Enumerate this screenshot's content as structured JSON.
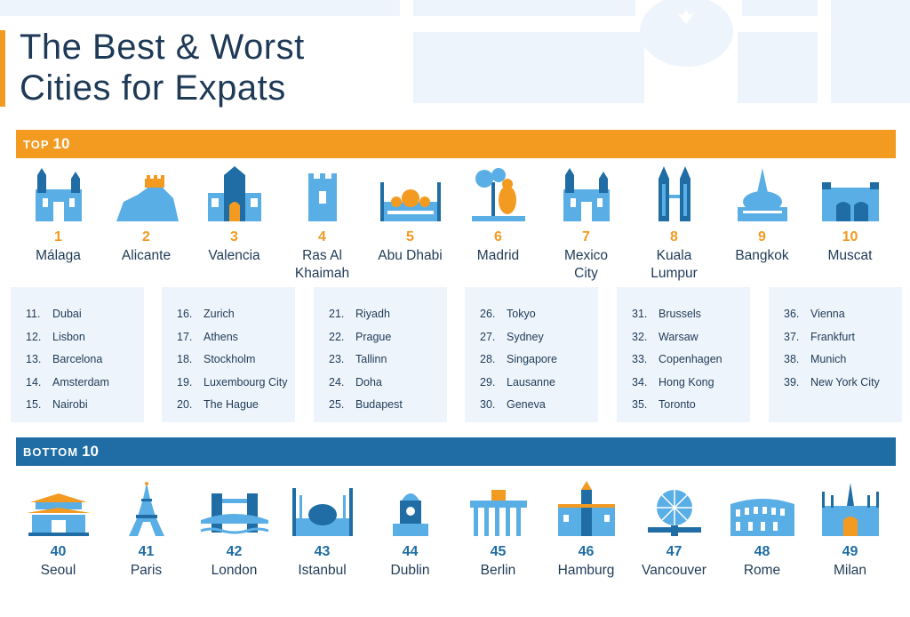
{
  "title_line1": "The Best & Worst",
  "title_line2": "Cities for Expats",
  "top_band": {
    "small": "TOP",
    "big": "10"
  },
  "bottom_band": {
    "small": "BOTTOM",
    "big": "10"
  },
  "top10": [
    {
      "rank": "1",
      "name": "Málaga",
      "icon": "cathedral-icon"
    },
    {
      "rank": "2",
      "name": "Alicante",
      "icon": "castle-hill-icon"
    },
    {
      "rank": "3",
      "name": "Valencia",
      "icon": "gothic-gate-icon"
    },
    {
      "rank": "4",
      "name": "Ras Al Khaimah",
      "icon": "fort-tower-icon"
    },
    {
      "rank": "5",
      "name": "Abu Dhabi",
      "icon": "grand-mosque-icon"
    },
    {
      "rank": "6",
      "name": "Madrid",
      "icon": "bear-statue-icon"
    },
    {
      "rank": "7",
      "name": "Mexico City",
      "icon": "cathedral-icon"
    },
    {
      "rank": "8",
      "name": "Kuala Lumpur",
      "icon": "twin-towers-icon"
    },
    {
      "rank": "9",
      "name": "Bangkok",
      "icon": "temple-icon"
    },
    {
      "rank": "10",
      "name": "Muscat",
      "icon": "palace-icon"
    }
  ],
  "middle_lists": [
    [
      {
        "n": "11.",
        "name": "Dubai"
      },
      {
        "n": "12.",
        "name": "Lisbon"
      },
      {
        "n": "13.",
        "name": "Barcelona"
      },
      {
        "n": "14.",
        "name": "Amsterdam"
      },
      {
        "n": "15.",
        "name": "Nairobi"
      }
    ],
    [
      {
        "n": "16.",
        "name": "Zurich"
      },
      {
        "n": "17.",
        "name": "Athens"
      },
      {
        "n": "18.",
        "name": "Stockholm"
      },
      {
        "n": "19.",
        "name": "Luxembourg City"
      },
      {
        "n": "20.",
        "name": "The Hague"
      }
    ],
    [
      {
        "n": "21.",
        "name": "Riyadh"
      },
      {
        "n": "22.",
        "name": "Prague"
      },
      {
        "n": "23.",
        "name": "Tallinn"
      },
      {
        "n": "24.",
        "name": "Doha"
      },
      {
        "n": "25.",
        "name": "Budapest"
      }
    ],
    [
      {
        "n": "26.",
        "name": "Tokyo"
      },
      {
        "n": "27.",
        "name": "Sydney"
      },
      {
        "n": "28.",
        "name": "Singapore"
      },
      {
        "n": "29.",
        "name": "Lausanne"
      },
      {
        "n": "30.",
        "name": "Geneva"
      }
    ],
    [
      {
        "n": "31.",
        "name": "Brussels"
      },
      {
        "n": "32.",
        "name": "Warsaw"
      },
      {
        "n": "33.",
        "name": "Copenhagen"
      },
      {
        "n": "34.",
        "name": "Hong Kong"
      },
      {
        "n": "35.",
        "name": "Toronto"
      }
    ],
    [
      {
        "n": "36.",
        "name": "Vienna"
      },
      {
        "n": "37.",
        "name": "Frankfurt"
      },
      {
        "n": "38.",
        "name": "Munich"
      },
      {
        "n": "39.",
        "name": "New York City"
      }
    ]
  ],
  "bottom10": [
    {
      "rank": "40",
      "name": "Seoul",
      "icon": "pagoda-gate-icon"
    },
    {
      "rank": "41",
      "name": "Paris",
      "icon": "eiffel-tower-icon"
    },
    {
      "rank": "42",
      "name": "London",
      "icon": "tower-bridge-icon"
    },
    {
      "rank": "43",
      "name": "Istanbul",
      "icon": "blue-mosque-icon"
    },
    {
      "rank": "44",
      "name": "Dublin",
      "icon": "clock-tower-icon"
    },
    {
      "rank": "45",
      "name": "Berlin",
      "icon": "brandenburg-gate-icon"
    },
    {
      "rank": "46",
      "name": "Hamburg",
      "icon": "town-hall-icon"
    },
    {
      "rank": "47",
      "name": "Vancouver",
      "icon": "geodesic-dome-icon"
    },
    {
      "rank": "48",
      "name": "Rome",
      "icon": "colosseum-icon"
    },
    {
      "rank": "49",
      "name": "Milan",
      "icon": "duomo-icon"
    }
  ],
  "colors": {
    "orange": "#f39a21",
    "blue": "#1f6da4",
    "light_blue": "#5aaee6",
    "navy": "#1f3a56",
    "panel": "#eef4fb"
  }
}
